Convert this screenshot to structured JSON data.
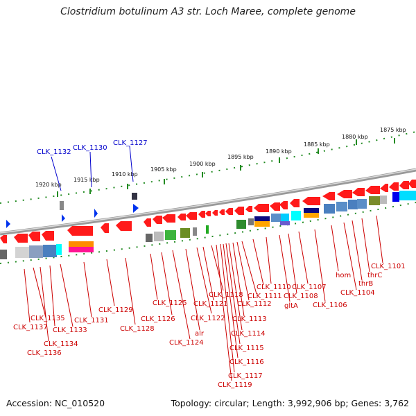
{
  "title": "Clostridium botulinum A3 str. Loch Maree, complete genome",
  "footer": {
    "accession": "Accession: NC_010520",
    "summary": "Topology: circular; Length: 3,992,906 bp; Genes: 3,762"
  },
  "colors": {
    "forward_gene": "#ff0000",
    "reverse_gene": "#ff0000",
    "rna_feature": "#0000ff",
    "tick": "#228B22",
    "backbone": "#888888",
    "label_gene": "#cc0000",
    "label_rna": "#0000cc"
  },
  "scale_labels": [
    "1920 kbp",
    "1915 kbp",
    "1910 kbp",
    "1905 kbp",
    "1900 kbp",
    "1895 kbp",
    "1890 kbp",
    "1885 kbp",
    "1880 kbp",
    "1875 kbp"
  ],
  "top_labels": [
    "CLK_1132",
    "CLK_1130",
    "CLK_1127"
  ],
  "bottom_labels": [
    "CLK_1137",
    "CLK_1135",
    "CLK_1134",
    "CLK_1136",
    "CLK_1133",
    "CLK_1131",
    "CLK_1129",
    "CLK_1128",
    "CLK_1126",
    "CLK_1125",
    "CLK_1124",
    "alr",
    "CLK_1122",
    "CLK_1121",
    "CLK_1118",
    "CLK_1119",
    "CLK_1117",
    "CLK_1116",
    "CLK_1115",
    "CLK_1114",
    "CLK_1113",
    "CLK_1112",
    "CLK_1111",
    "CLK_1110",
    "gltA",
    "CLK_1108",
    "CLK_1107",
    "CLK_1106",
    "hom",
    "CLK_1104",
    "thrB",
    "thrC",
    "CLK_1101"
  ]
}
